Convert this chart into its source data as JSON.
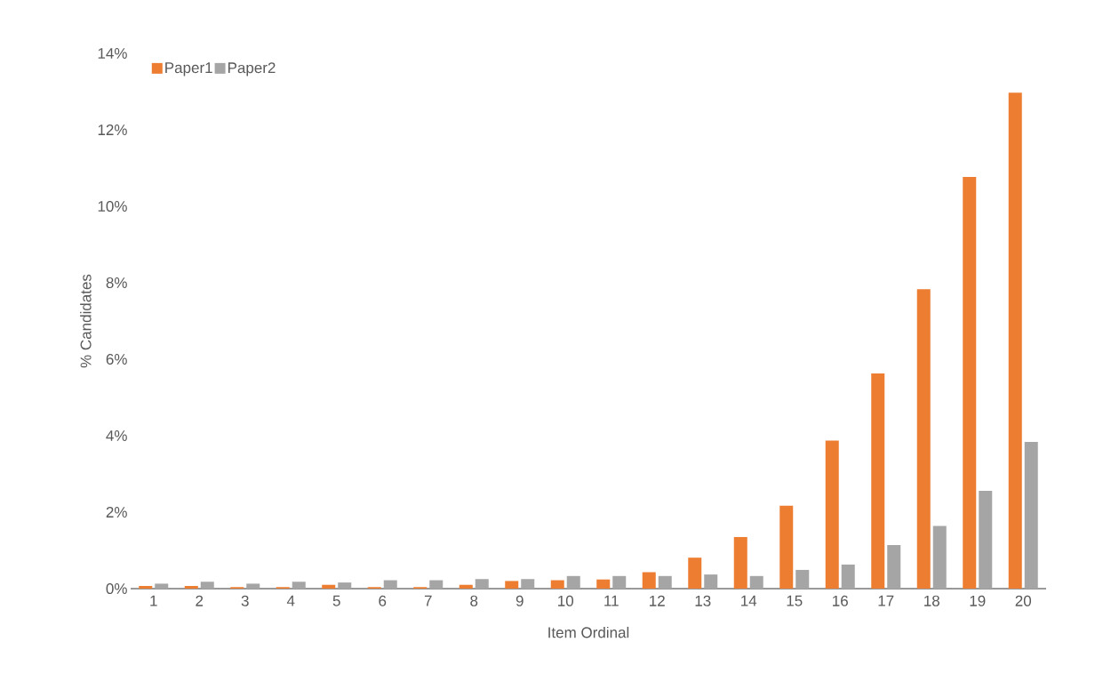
{
  "chart_data": {
    "type": "bar",
    "xlabel": "Item Ordinal",
    "ylabel": "% Candidates",
    "categories": [
      "1",
      "2",
      "3",
      "4",
      "5",
      "6",
      "7",
      "8",
      "9",
      "10",
      "11",
      "12",
      "13",
      "14",
      "15",
      "16",
      "17",
      "18",
      "19",
      "20"
    ],
    "series": [
      {
        "name": "Paper1",
        "color": "#ed7d31",
        "values": [
          0.07,
          0.07,
          0.04,
          0.04,
          0.1,
          0.04,
          0.04,
          0.1,
          0.2,
          0.22,
          0.24,
          0.43,
          0.81,
          1.35,
          2.17,
          3.87,
          5.63,
          7.83,
          10.77,
          12.97
        ]
      },
      {
        "name": "Paper2",
        "color": "#a5a5a5",
        "values": [
          0.13,
          0.18,
          0.13,
          0.18,
          0.16,
          0.22,
          0.22,
          0.25,
          0.25,
          0.33,
          0.33,
          0.33,
          0.37,
          0.33,
          0.49,
          0.63,
          1.14,
          1.64,
          2.56,
          3.84
        ]
      }
    ],
    "ylim": [
      0,
      14
    ],
    "yticks": [
      {
        "value": 0,
        "label": "0%"
      },
      {
        "value": 2,
        "label": "2%"
      },
      {
        "value": 4,
        "label": "4%"
      },
      {
        "value": 6,
        "label": "6%"
      },
      {
        "value": 8,
        "label": "8%"
      },
      {
        "value": 10,
        "label": "10%"
      },
      {
        "value": 12,
        "label": "12%"
      },
      {
        "value": 14,
        "label": "14%"
      }
    ],
    "legend": "top left"
  }
}
